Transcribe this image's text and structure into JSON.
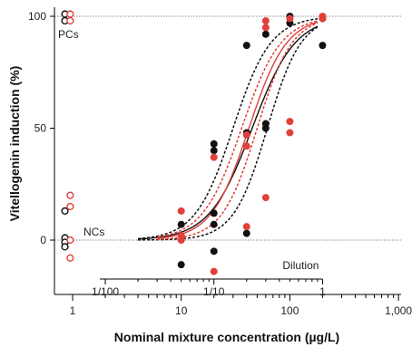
{
  "chart_data": {
    "type": "scatter",
    "xlabel": "Nominal mixture concentration (µg/L)",
    "ylabel": "Vitellogenin induction (%)",
    "xscale": "log",
    "xlim": [
      0.5,
      1000
    ],
    "ylim": [
      -22,
      106
    ],
    "x_ticks": [
      1,
      10,
      100,
      1000
    ],
    "x_tick_labels": [
      "1",
      "10",
      "100",
      "1,000"
    ],
    "y_ticks": [
      0,
      50,
      100
    ],
    "y_tick_labels": [
      "0",
      "50",
      "100"
    ],
    "dilution_axis": {
      "label": "Dilution",
      "ticks": [
        0.01,
        0.1,
        1
      ],
      "tick_labels": [
        "1/100",
        "1/10",
        "1"
      ],
      "dilution_1_at_x": 200
    },
    "reference_lines": [
      {
        "label": "PCs",
        "y": 100
      },
      {
        "label": "NCs",
        "y": 0
      }
    ],
    "colors": {
      "black_series": "#111111",
      "red_series": "#e0403a",
      "axis": "#000000",
      "reference": "#888888"
    },
    "series": [
      {
        "color": "#111111",
        "marker": "filled-circle",
        "points": [
          [
            10,
            7
          ],
          [
            10,
            -11
          ],
          [
            20,
            43
          ],
          [
            20,
            40
          ],
          [
            20,
            12
          ],
          [
            20,
            7
          ],
          [
            20,
            -5
          ],
          [
            40,
            87
          ],
          [
            40,
            48
          ],
          [
            40,
            3
          ],
          [
            60,
            92
          ],
          [
            60,
            52
          ],
          [
            60,
            50
          ],
          [
            100,
            100
          ],
          [
            100,
            97
          ],
          [
            200,
            99
          ],
          [
            200,
            87
          ]
        ]
      },
      {
        "color": "#e0403a",
        "marker": "filled-circle",
        "points": [
          [
            10,
            13
          ],
          [
            10,
            2
          ],
          [
            10,
            0
          ],
          [
            20,
            37
          ],
          [
            20,
            -14
          ],
          [
            40,
            47
          ],
          [
            40,
            42
          ],
          [
            40,
            6
          ],
          [
            60,
            98
          ],
          [
            60,
            95
          ],
          [
            60,
            19
          ],
          [
            100,
            99
          ],
          [
            100,
            53
          ],
          [
            100,
            48
          ],
          [
            200,
            100
          ],
          [
            200,
            99
          ]
        ]
      },
      {
        "color": "#111111",
        "marker": "open-circle",
        "points": [
          [
            0.85,
            101
          ],
          [
            0.85,
            98
          ],
          [
            0.85,
            13
          ],
          [
            0.85,
            1
          ],
          [
            0.85,
            -1
          ],
          [
            0.85,
            -3
          ]
        ]
      },
      {
        "color": "#e0403a",
        "marker": "open-circle",
        "points": [
          [
            0.95,
            101
          ],
          [
            0.95,
            98
          ],
          [
            0.95,
            20
          ],
          [
            0.95,
            15
          ],
          [
            0.95,
            0
          ],
          [
            0.95,
            -8
          ]
        ]
      }
    ],
    "curves": [
      {
        "color": "#111111",
        "style": "solid",
        "ec50": 45,
        "hill": 2.2,
        "x_range": [
          4,
          180
        ]
      },
      {
        "color": "#111111",
        "style": "dashed",
        "ec50": 30,
        "hill": 2.5,
        "x_range": [
          4,
          180
        ]
      },
      {
        "color": "#111111",
        "style": "dashed",
        "ec50": 62,
        "hill": 2.8,
        "x_range": [
          4,
          180
        ]
      },
      {
        "color": "#e0403a",
        "style": "solid",
        "ec50": 42,
        "hill": 2.5,
        "x_range": [
          6,
          180
        ]
      },
      {
        "color": "#e0403a",
        "style": "dashed",
        "ec50": 36,
        "hill": 2.4,
        "x_range": [
          6,
          180
        ]
      },
      {
        "color": "#e0403a",
        "style": "dashed",
        "ec50": 50,
        "hill": 2.7,
        "x_range": [
          6,
          180
        ]
      }
    ]
  }
}
